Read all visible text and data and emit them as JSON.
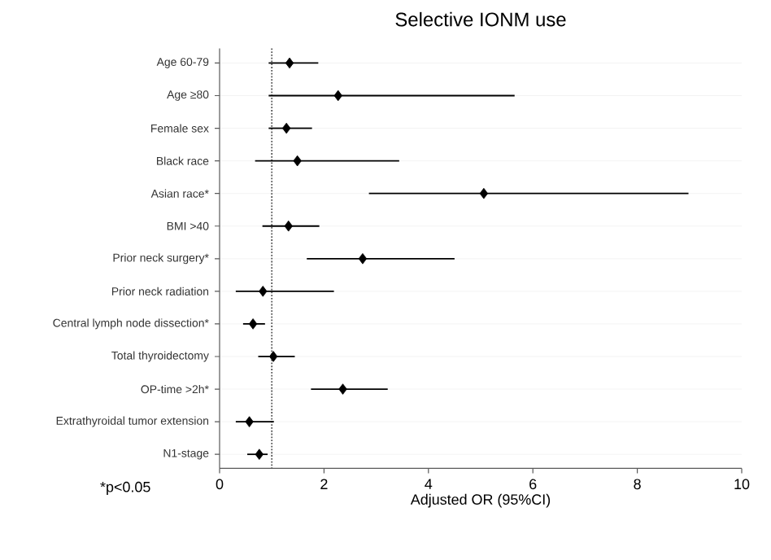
{
  "chart_data": {
    "type": "scatter",
    "orientation": "horizontal",
    "title": "Selective IONM use",
    "xlabel": "Adjusted OR (95%CI)",
    "categories": [
      "Age 60-79",
      "Age ≥80",
      "Female sex",
      "Black race",
      "Asian race*",
      "BMI >40",
      "Prior neck surgery*",
      "Prior neck radiation",
      "Central lymph node dissection*",
      "Total thyroidectomy",
      "OP-time >2h*",
      "Extrathyroidal tumor extension",
      "N1-stage"
    ],
    "values": [
      1.34,
      2.27,
      1.28,
      1.49,
      5.06,
      1.32,
      2.74,
      0.83,
      0.64,
      1.03,
      2.36,
      0.57,
      0.76
    ],
    "errors": [
      [
        0.94,
        1.89
      ],
      [
        0.94,
        5.65
      ],
      [
        0.94,
        1.77
      ],
      [
        0.68,
        3.44
      ],
      [
        2.86,
        8.98
      ],
      [
        0.82,
        1.91
      ],
      [
        1.67,
        4.5
      ],
      [
        0.31,
        2.19
      ],
      [
        0.45,
        0.87
      ],
      [
        0.74,
        1.44
      ],
      [
        1.75,
        3.22
      ],
      [
        0.31,
        1.04
      ],
      [
        0.53,
        0.92
      ]
    ],
    "color": "#000000",
    "marker": "diamond",
    "xlim": [
      0,
      10
    ],
    "xticks": [
      0,
      2,
      4,
      6,
      8,
      10
    ],
    "grid": "y",
    "ref_lines": [
      {
        "axis": "x",
        "value": 1,
        "line_style": "dotted",
        "color": "#555555"
      }
    ],
    "annotations": [
      "*p<0.05"
    ]
  }
}
